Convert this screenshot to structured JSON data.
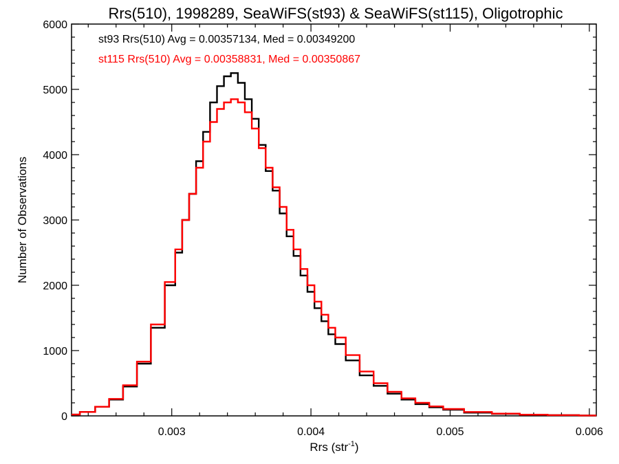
{
  "chart_data": {
    "type": "line",
    "title": "Rrs(510), 1998289, SeaWiFS(st93) & SeaWiFS(st115), Oligotrophic",
    "xlabel_base": "Rrs (str",
    "xlabel_sup": "-1",
    "xlabel_close": ")",
    "ylabel": "Number of Observations",
    "xlim": [
      0.00228,
      0.00605
    ],
    "ylim": [
      0,
      6000
    ],
    "x_ticks": [
      0.003,
      0.004,
      0.005,
      0.006
    ],
    "x_tick_labels": [
      "0.003",
      "0.004",
      "0.005",
      "0.006"
    ],
    "y_ticks": [
      0,
      1000,
      2000,
      3000,
      4000,
      5000,
      6000
    ],
    "y_tick_labels": [
      "0",
      "1000",
      "2000",
      "3000",
      "4000",
      "5000",
      "6000"
    ],
    "grid": false,
    "series": [
      {
        "name": "st93",
        "label": "st93 Rrs(510) Avg = 0.00357134, Med = 0.00349200",
        "color": "#000000",
        "x": [
          0.00228,
          0.0024,
          0.0025,
          0.0026,
          0.0027,
          0.0028,
          0.0029,
          0.003,
          0.00305,
          0.0031,
          0.00315,
          0.0032,
          0.00325,
          0.0033,
          0.00335,
          0.0034,
          0.00345,
          0.0035,
          0.00355,
          0.0036,
          0.00365,
          0.0037,
          0.00375,
          0.0038,
          0.00385,
          0.0039,
          0.00395,
          0.004,
          0.00405,
          0.0041,
          0.00415,
          0.0042,
          0.0043,
          0.0044,
          0.0045,
          0.0046,
          0.0047,
          0.0048,
          0.0049,
          0.005,
          0.0052,
          0.0054,
          0.0056,
          0.0058,
          0.00605
        ],
        "y": [
          20,
          60,
          140,
          250,
          450,
          800,
          1350,
          2000,
          2500,
          3000,
          3400,
          3900,
          4350,
          4800,
          5050,
          5200,
          5250,
          5100,
          4850,
          4550,
          4150,
          3750,
          3450,
          3100,
          2750,
          2450,
          2150,
          1900,
          1650,
          1450,
          1250,
          1100,
          850,
          620,
          460,
          340,
          250,
          180,
          130,
          95,
          50,
          30,
          15,
          10,
          5
        ]
      },
      {
        "name": "st115",
        "label": "st115 Rrs(510) Avg = 0.00358831, Med = 0.00350867",
        "color": "#ff0000",
        "x": [
          0.00228,
          0.0024,
          0.0025,
          0.0026,
          0.0027,
          0.0028,
          0.0029,
          0.003,
          0.00305,
          0.0031,
          0.00315,
          0.0032,
          0.00325,
          0.0033,
          0.00335,
          0.0034,
          0.00345,
          0.0035,
          0.00355,
          0.0036,
          0.00365,
          0.0037,
          0.00375,
          0.0038,
          0.00385,
          0.0039,
          0.00395,
          0.004,
          0.00405,
          0.0041,
          0.00415,
          0.0042,
          0.0043,
          0.0044,
          0.0045,
          0.0046,
          0.0047,
          0.0048,
          0.0049,
          0.005,
          0.0052,
          0.0054,
          0.0056,
          0.0058,
          0.00605
        ],
        "y": [
          20,
          60,
          140,
          260,
          470,
          830,
          1400,
          2050,
          2550,
          3000,
          3400,
          3800,
          4200,
          4500,
          4700,
          4800,
          4850,
          4800,
          4650,
          4400,
          4100,
          3800,
          3500,
          3200,
          2850,
          2550,
          2250,
          2000,
          1750,
          1550,
          1350,
          1200,
          930,
          680,
          500,
          370,
          270,
          200,
          145,
          105,
          60,
          35,
          18,
          12,
          6
        ]
      }
    ]
  }
}
